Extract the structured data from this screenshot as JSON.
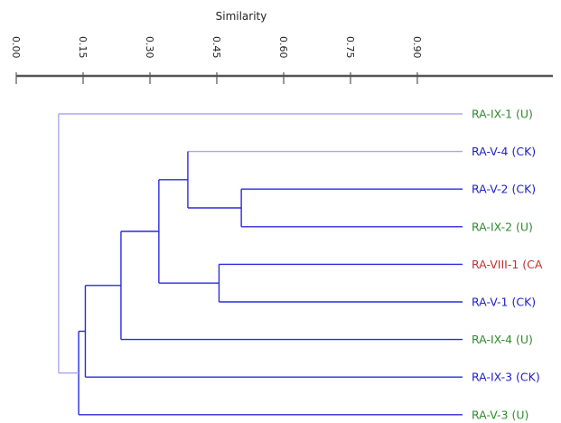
{
  "axis": {
    "title": "Similarity",
    "ticks": [
      "0.00",
      "0.15",
      "0.30",
      "0.45",
      "0.60",
      "0.75",
      "0.90"
    ],
    "range": [
      0,
      1.0
    ]
  },
  "colors": {
    "U": "#2e8b2e",
    "CK": "#2020c8",
    "CA": "#c03030",
    "branch_blue": "#2a2ae0",
    "branch_light": "#a8a8e8",
    "axis": "#555555"
  },
  "leaves": [
    {
      "label": "RA-IX-1 (U)",
      "group": "U"
    },
    {
      "label": "RA-V-4 (CK)",
      "group": "CK"
    },
    {
      "label": "RA-V-2 (CK)",
      "group": "CK"
    },
    {
      "label": "RA-IX-2 (U)",
      "group": "U"
    },
    {
      "label": "RA-VIII-1 (CA",
      "group": "CA"
    },
    {
      "label": "RA-V-1 (CK)",
      "group": "CK"
    },
    {
      "label": "RA-IX-4 (U)",
      "group": "U"
    },
    {
      "label": "RA-IX-3 (CK)",
      "group": "CK"
    },
    {
      "label": "RA-V-3 (U)",
      "group": "U"
    }
  ],
  "merges": [
    {
      "id": "A",
      "children": [
        2,
        3
      ],
      "similarity": 0.505
    },
    {
      "id": "B",
      "children": [
        4,
        5
      ],
      "similarity": 0.455
    },
    {
      "id": "C",
      "children": [
        1,
        "A"
      ],
      "similarity": 0.385
    },
    {
      "id": "D",
      "children": [
        "C",
        "B"
      ],
      "similarity": 0.32
    },
    {
      "id": "E",
      "children": [
        "D",
        6
      ],
      "similarity": 0.235
    },
    {
      "id": "F",
      "children": [
        "E",
        7
      ],
      "similarity": 0.155
    },
    {
      "id": "G",
      "children": [
        "F",
        8
      ],
      "similarity": 0.14
    },
    {
      "id": "H",
      "children": [
        0,
        "G"
      ],
      "similarity": 0.095
    }
  ]
}
